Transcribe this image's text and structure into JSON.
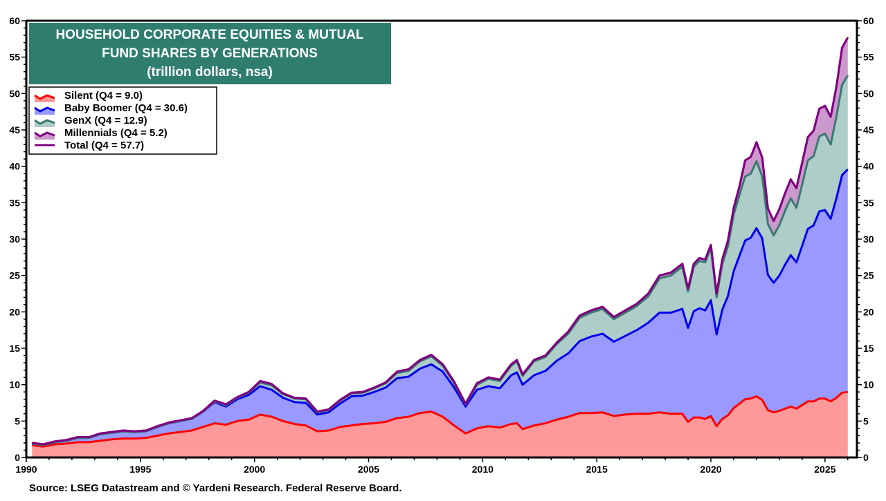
{
  "chart_data": {
    "type": "area",
    "stacked": true,
    "title": [
      "HOUSEHOLD CORPORATE EQUITIES & MUTUAL",
      "FUND SHARES BY GENERATIONS",
      "(trillion dollars, nsa)"
    ],
    "source": "Source: LSEG Datastream and © Yardeni Research. Federal Reserve Board.",
    "xlabel": "",
    "ylabel": "",
    "xlim": [
      1990,
      2026.4
    ],
    "ylim": [
      0,
      60
    ],
    "x_ticks": [
      "1990",
      "1995",
      "2000",
      "2005",
      "2010",
      "2015",
      "2020",
      "2025"
    ],
    "y_ticks": [
      "0",
      "5",
      "10",
      "15",
      "20",
      "25",
      "30",
      "35",
      "40",
      "45",
      "50",
      "55",
      "60"
    ],
    "y_axis_sides": "both",
    "grid": false,
    "legend_position": "top-left",
    "title_box_color": "#2e7d6f",
    "x": [
      "1990Q1",
      "1990Q3",
      "1991Q1",
      "1991Q3",
      "1992Q1",
      "1992Q3",
      "1993Q1",
      "1993Q3",
      "1994Q1",
      "1994Q3",
      "1995Q1",
      "1995Q3",
      "1996Q1",
      "1996Q3",
      "1997Q1",
      "1997Q3",
      "1998Q1",
      "1998Q3",
      "1999Q1",
      "1999Q3",
      "2000Q1",
      "2000Q3",
      "2001Q1",
      "2001Q3",
      "2002Q1",
      "2002Q3",
      "2003Q1",
      "2003Q3",
      "2004Q1",
      "2004Q3",
      "2005Q1",
      "2005Q3",
      "2006Q1",
      "2006Q3",
      "2007Q1",
      "2007Q3",
      "2008Q1",
      "2008Q3",
      "2009Q1",
      "2009Q3",
      "2010Q1",
      "2010Q3",
      "2011Q1",
      "2011Q2",
      "2011Q3",
      "2012Q1",
      "2012Q3",
      "2013Q1",
      "2013Q3",
      "2014Q1",
      "2014Q3",
      "2015Q1",
      "2015Q3",
      "2016Q1",
      "2016Q3",
      "2017Q1",
      "2017Q3",
      "2018Q1",
      "2018Q3",
      "2018Q4",
      "2019Q1",
      "2019Q2",
      "2019Q3",
      "2019Q4",
      "2020Q1",
      "2020Q2",
      "2020Q3",
      "2020Q4",
      "2021Q1",
      "2021Q2",
      "2021Q3",
      "2021Q4",
      "2022Q1",
      "2022Q2",
      "2022Q3",
      "2022Q4",
      "2023Q1",
      "2023Q2",
      "2023Q3",
      "2023Q4",
      "2024Q1",
      "2024Q2",
      "2024Q3",
      "2024Q4",
      "2025Q1",
      "2025Q2",
      "2025Q3",
      "2025Q4"
    ],
    "series": [
      {
        "name": "Silent",
        "legend": "Silent (Q4 = 9.0)",
        "fill": "#ff9999",
        "line": "#ff0000",
        "values": [
          1.7,
          1.5,
          1.8,
          1.9,
          2.1,
          2.1,
          2.3,
          2.5,
          2.6,
          2.6,
          2.7,
          3.0,
          3.3,
          3.5,
          3.7,
          4.2,
          4.7,
          4.5,
          5.0,
          5.2,
          5.9,
          5.6,
          5.0,
          4.6,
          4.4,
          3.6,
          3.7,
          4.2,
          4.4,
          4.6,
          4.7,
          4.9,
          5.4,
          5.6,
          6.1,
          6.3,
          5.6,
          4.4,
          3.3,
          4.0,
          4.3,
          4.1,
          4.6,
          4.7,
          3.9,
          4.4,
          4.7,
          5.2,
          5.6,
          6.1,
          6.1,
          6.2,
          5.7,
          5.9,
          6.0,
          6.0,
          6.2,
          6.0,
          6.0,
          4.9,
          5.5,
          5.5,
          5.3,
          5.7,
          4.3,
          5.3,
          5.8,
          6.8,
          7.4,
          8.0,
          8.1,
          8.4,
          7.9,
          6.5,
          6.2,
          6.4,
          6.7,
          7.0,
          6.7,
          7.2,
          7.7,
          7.7,
          8.1,
          8.1,
          7.7,
          8.2,
          8.9,
          9.0
        ]
      },
      {
        "name": "Baby Boomer",
        "legend": "Baby Boomer (Q4 = 30.6)",
        "fill": "#9999ff",
        "line": "#0000ee",
        "values": [
          0.2,
          0.2,
          0.3,
          0.4,
          0.6,
          0.6,
          0.9,
          0.9,
          1.0,
          0.9,
          0.9,
          1.2,
          1.4,
          1.5,
          1.6,
          2.1,
          2.9,
          2.5,
          3.0,
          3.4,
          3.9,
          3.7,
          3.2,
          3.0,
          3.1,
          2.3,
          2.5,
          3.2,
          4.0,
          3.9,
          4.3,
          4.7,
          5.5,
          5.5,
          6.1,
          6.5,
          6.2,
          5.2,
          3.7,
          5.3,
          5.5,
          5.4,
          6.7,
          7.0,
          6.1,
          6.9,
          7.2,
          8.1,
          8.7,
          9.9,
          10.5,
          10.8,
          10.2,
          10.8,
          11.5,
          12.5,
          13.7,
          13.9,
          14.4,
          12.9,
          14.6,
          15.0,
          14.9,
          15.9,
          12.6,
          15.0,
          16.4,
          18.8,
          20.3,
          21.8,
          22.1,
          23.1,
          22.2,
          18.6,
          17.8,
          18.6,
          19.8,
          20.8,
          20.1,
          21.9,
          23.7,
          24.2,
          25.7,
          25.9,
          25.1,
          27.4,
          29.9,
          30.6
        ]
      },
      {
        "name": "GenX",
        "legend": "GenX (Q4 = 12.9)",
        "fill": "#aecdc8",
        "line": "#3a7a70",
        "values": [
          0.0,
          0.0,
          0.0,
          0.0,
          0.0,
          0.0,
          0.0,
          0.0,
          0.0,
          0.0,
          0.0,
          0.0,
          0.0,
          0.0,
          0.0,
          0.0,
          0.1,
          0.2,
          0.2,
          0.3,
          0.5,
          0.6,
          0.5,
          0.5,
          0.5,
          0.3,
          0.3,
          0.4,
          0.4,
          0.4,
          0.5,
          0.6,
          0.7,
          0.8,
          1.0,
          1.1,
          0.8,
          0.6,
          0.3,
          0.7,
          1.0,
          1.0,
          1.3,
          1.5,
          1.2,
          1.9,
          1.9,
          2.3,
          2.7,
          3.2,
          3.3,
          3.4,
          3.1,
          3.2,
          3.3,
          3.6,
          4.7,
          5.1,
          5.8,
          5.0,
          6.1,
          6.5,
          6.6,
          7.2,
          5.1,
          6.3,
          6.8,
          7.8,
          8.3,
          8.8,
          8.8,
          9.2,
          8.5,
          7.0,
          6.5,
          6.9,
          7.4,
          7.8,
          7.5,
          8.4,
          9.4,
          9.5,
          10.3,
          10.5,
          10.2,
          11.2,
          12.4,
          12.9
        ]
      },
      {
        "name": "Millennials",
        "legend": "Millennials (Q4 = 5.2)",
        "fill": "#cc99cc",
        "line": "#800080",
        "values": [
          0.1,
          0.1,
          0.1,
          0.1,
          0.1,
          0.1,
          0.1,
          0.1,
          0.1,
          0.1,
          0.1,
          0.1,
          0.1,
          0.1,
          0.1,
          0.1,
          0.1,
          0.1,
          0.1,
          0.1,
          0.2,
          0.2,
          0.1,
          0.1,
          0.1,
          0.1,
          0.1,
          0.1,
          0.1,
          0.1,
          0.1,
          0.1,
          0.2,
          0.2,
          0.2,
          0.2,
          0.2,
          0.2,
          0.1,
          0.2,
          0.2,
          0.2,
          0.2,
          0.2,
          0.2,
          0.2,
          0.2,
          0.2,
          0.3,
          0.3,
          0.3,
          0.3,
          0.3,
          0.3,
          0.3,
          0.4,
          0.4,
          0.4,
          0.4,
          0.4,
          0.4,
          0.4,
          0.4,
          0.4,
          0.5,
          0.6,
          0.8,
          0.9,
          1.2,
          2.2,
          2.3,
          2.6,
          2.6,
          2.1,
          2.0,
          2.2,
          2.4,
          2.6,
          2.7,
          3.0,
          3.2,
          3.5,
          3.8,
          3.8,
          3.8,
          4.1,
          5.1,
          5.2
        ]
      }
    ],
    "total": {
      "name": "Total",
      "legend": "Total (Q4 = 57.7)",
      "line": "#800080",
      "values": [
        2.0,
        1.8,
        2.2,
        2.4,
        2.8,
        2.8,
        3.3,
        3.5,
        3.7,
        3.6,
        3.7,
        4.3,
        4.8,
        5.1,
        5.4,
        6.4,
        7.8,
        7.3,
        8.3,
        9.0,
        10.5,
        10.1,
        8.8,
        8.2,
        8.1,
        6.3,
        6.6,
        7.9,
        8.9,
        9.0,
        9.6,
        10.3,
        11.8,
        12.1,
        13.4,
        14.1,
        12.8,
        10.4,
        7.4,
        10.2,
        11.0,
        10.7,
        12.8,
        13.4,
        11.4,
        13.4,
        14.0,
        15.8,
        17.3,
        19.5,
        20.2,
        20.7,
        19.3,
        20.2,
        21.1,
        22.5,
        25.0,
        25.4,
        26.6,
        23.2,
        26.6,
        27.4,
        27.2,
        29.2,
        22.5,
        27.2,
        29.8,
        34.3,
        37.2,
        40.8,
        41.3,
        43.3,
        41.2,
        34.2,
        32.5,
        34.1,
        36.3,
        38.2,
        37.0,
        40.5,
        44.0,
        44.9,
        47.9,
        48.3,
        46.8,
        50.9,
        56.3,
        57.7
      ]
    }
  }
}
